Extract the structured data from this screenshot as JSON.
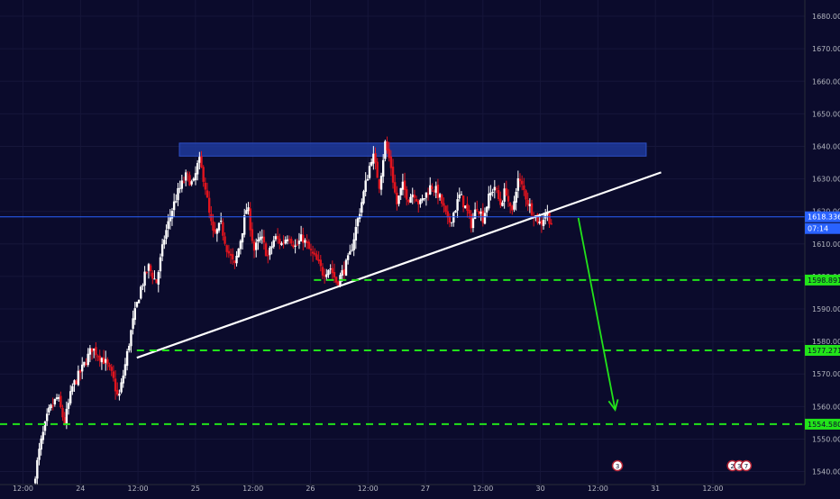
{
  "colors": {
    "background": "#0b0b2c",
    "bull": "#ffffff",
    "bear": "#e0141e",
    "support": "#22e31a",
    "trendline": "#ffffff",
    "resistance_zone": "#1f3a9c",
    "current_price": "#2962ff",
    "axis_text": "#b2b5be"
  },
  "chart_data": {
    "type": "candlestick",
    "ylim": [
      1536,
      1685
    ],
    "x_range": [
      -2,
      68
    ],
    "y_ticks": [
      1540,
      1550,
      1560,
      1570,
      1580,
      1590,
      1600,
      1610,
      1620,
      1630,
      1640,
      1650,
      1660,
      1670,
      1680
    ],
    "y_tick_labels": [
      "1540.000",
      "1550.000",
      "1560.000",
      "1570.000",
      "1580.000",
      "1590.000",
      "1600.000",
      "1610.000",
      "1620.000",
      "1630.000",
      "1640.000",
      "1650.000",
      "1660.000",
      "1670.000",
      "1680.000"
    ],
    "x_ticks": [
      {
        "x": 0,
        "label": "12:00"
      },
      {
        "x": 5,
        "label": "24"
      },
      {
        "x": 10,
        "label": "12:00"
      },
      {
        "x": 15,
        "label": "25"
      },
      {
        "x": 20,
        "label": "12:00"
      },
      {
        "x": 25,
        "label": "26"
      },
      {
        "x": 30,
        "label": "12:00"
      },
      {
        "x": 35,
        "label": "27"
      },
      {
        "x": 40,
        "label": "12:00"
      },
      {
        "x": 45,
        "label": "30"
      },
      {
        "x": 50,
        "label": "12:00"
      },
      {
        "x": 55,
        "label": "31"
      },
      {
        "x": 60,
        "label": "12:00"
      }
    ],
    "price_path": [
      [
        0.9,
        1536
      ],
      [
        1.5,
        1548
      ],
      [
        2.2,
        1558
      ],
      [
        3.0,
        1563
      ],
      [
        3.6,
        1555
      ],
      [
        4.3,
        1566
      ],
      [
        5.2,
        1572
      ],
      [
        6.0,
        1578
      ],
      [
        7.1,
        1574
      ],
      [
        7.8,
        1569
      ],
      [
        8.3,
        1562
      ],
      [
        8.9,
        1573
      ],
      [
        9.5,
        1585
      ],
      [
        10.2,
        1596
      ],
      [
        10.9,
        1603
      ],
      [
        11.6,
        1598
      ],
      [
        12.3,
        1612
      ],
      [
        13.0,
        1621
      ],
      [
        13.5,
        1626
      ],
      [
        14.2,
        1631
      ],
      [
        14.8,
        1628
      ],
      [
        15.3,
        1636
      ],
      [
        15.8,
        1629
      ],
      [
        16.2,
        1619
      ],
      [
        16.6,
        1612
      ],
      [
        17.2,
        1616
      ],
      [
        17.8,
        1608
      ],
      [
        18.4,
        1603
      ],
      [
        18.9,
        1611
      ],
      [
        19.5,
        1622
      ],
      [
        20.1,
        1608
      ],
      [
        20.7,
        1612
      ],
      [
        21.3,
        1606
      ],
      [
        21.9,
        1612
      ],
      [
        22.5,
        1610
      ],
      [
        23.1,
        1613
      ],
      [
        23.7,
        1609
      ],
      [
        24.3,
        1612
      ],
      [
        24.9,
        1608
      ],
      [
        25.5,
        1605
      ],
      [
        26.1,
        1601
      ],
      [
        26.7,
        1603
      ],
      [
        27.3,
        1598
      ],
      [
        27.9,
        1602
      ],
      [
        28.4,
        1606
      ],
      [
        28.9,
        1614
      ],
      [
        29.4,
        1622
      ],
      [
        29.9,
        1630
      ],
      [
        30.4,
        1638
      ],
      [
        31.0,
        1628
      ],
      [
        31.5,
        1641
      ],
      [
        32.0,
        1634
      ],
      [
        32.5,
        1622
      ],
      [
        33.0,
        1628
      ],
      [
        33.5,
        1624
      ],
      [
        34.0,
        1626
      ],
      [
        34.5,
        1622
      ],
      [
        35.0,
        1625
      ],
      [
        35.5,
        1628
      ],
      [
        36.0,
        1626
      ],
      [
        36.5,
        1622
      ],
      [
        37.0,
        1616
      ],
      [
        37.5,
        1620
      ],
      [
        38.0,
        1625
      ],
      [
        38.5,
        1621
      ],
      [
        39.0,
        1616
      ],
      [
        39.5,
        1622
      ],
      [
        40.0,
        1618
      ],
      [
        40.5,
        1624
      ],
      [
        41.0,
        1628
      ],
      [
        41.5,
        1622
      ],
      [
        42.0,
        1627
      ],
      [
        42.5,
        1618
      ],
      [
        43.0,
        1630
      ],
      [
        43.5,
        1627
      ],
      [
        44.0,
        1622
      ],
      [
        44.5,
        1619
      ],
      [
        45.0,
        1616
      ],
      [
        45.5,
        1620
      ],
      [
        46.0,
        1616
      ]
    ],
    "resistance_zone": {
      "x1": 13.6,
      "x2": 54.2,
      "y1": 1637,
      "y2": 1641
    },
    "trendline": {
      "x1": 9.9,
      "y1": 1575,
      "x2": 55.5,
      "y2": 1632
    },
    "support_levels": [
      {
        "value": 1598.891,
        "label": "1598.891",
        "x_start": 25.3
      },
      {
        "value": 1577.271,
        "label": "1577.271",
        "x_start": 9.9
      },
      {
        "value": 1554.58,
        "label": "1554.580",
        "x_start": -2.0
      }
    ],
    "projection_arrow": {
      "x1": 48.3,
      "y1": 1618,
      "x2": 51.5,
      "y2": 1559
    },
    "current_price": {
      "value": 1618.336,
      "label": "1618.336",
      "countdown": "07:14"
    },
    "event_markers": [
      {
        "x": 51.7,
        "label": "3"
      },
      {
        "x": 61.7,
        "label": "2"
      },
      {
        "x": 62.3,
        "label": "3"
      },
      {
        "x": 62.9,
        "label": "7"
      }
    ]
  }
}
